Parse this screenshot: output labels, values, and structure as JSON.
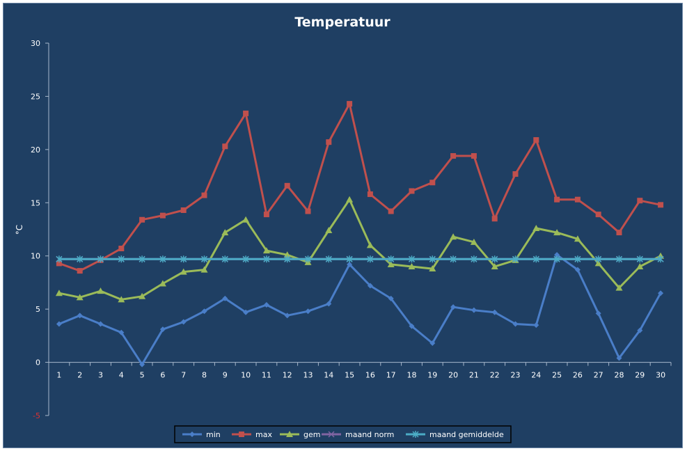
{
  "chart_data": {
    "type": "line",
    "title": "Temperatuur",
    "xlabel": "",
    "ylabel": "°C",
    "ylim": [
      -5,
      30
    ],
    "yticks": [
      "30",
      "25",
      "20",
      "15",
      "10",
      "5",
      "0",
      "-5"
    ],
    "categories": [
      "1",
      "2",
      "3",
      "4",
      "5",
      "6",
      "7",
      "8",
      "9",
      "10",
      "11",
      "12",
      "13",
      "14",
      "15",
      "16",
      "17",
      "18",
      "19",
      "20",
      "21",
      "22",
      "23",
      "24",
      "25",
      "26",
      "27",
      "28",
      "29",
      "30"
    ],
    "grid": false,
    "legend_position": "bottom",
    "series": [
      {
        "name": "min",
        "color": "#4a7ec8",
        "marker": "diamond",
        "values": [
          3.6,
          4.4,
          3.6,
          2.8,
          -0.2,
          3.1,
          3.8,
          4.8,
          6.0,
          4.7,
          5.4,
          4.4,
          4.8,
          5.5,
          9.2,
          7.2,
          6.0,
          3.4,
          1.8,
          5.2,
          4.9,
          4.7,
          3.6,
          3.5,
          10.1,
          8.7,
          4.6,
          0.4,
          3.0,
          6.5
        ]
      },
      {
        "name": "max",
        "color": "#c0504d",
        "marker": "square",
        "values": [
          9.3,
          8.6,
          9.6,
          10.7,
          13.4,
          13.8,
          14.3,
          15.7,
          20.3,
          23.4,
          13.9,
          16.6,
          14.2,
          20.7,
          24.3,
          15.8,
          14.2,
          16.1,
          16.9,
          19.4,
          19.4,
          13.5,
          17.7,
          20.9,
          15.3,
          15.3,
          13.9,
          12.2,
          15.2,
          14.8
        ]
      },
      {
        "name": "gem",
        "color": "#9bbb59",
        "marker": "triangle",
        "values": [
          6.5,
          6.1,
          6.7,
          5.9,
          6.2,
          7.4,
          8.5,
          8.7,
          12.2,
          13.4,
          10.5,
          10.1,
          9.4,
          12.4,
          15.3,
          11.0,
          9.2,
          9.0,
          8.8,
          11.8,
          11.3,
          9.0,
          9.6,
          12.6,
          12.2,
          11.6,
          9.3,
          7.0,
          9.0,
          10.0
        ]
      },
      {
        "name": "maand norm",
        "color": "#8064a2",
        "marker": "x",
        "values": [
          9.7,
          9.7,
          9.7,
          9.7,
          9.7,
          9.7,
          9.7,
          9.7,
          9.7,
          9.7,
          9.7,
          9.7,
          9.7,
          9.7,
          9.7,
          9.7,
          9.7,
          9.7,
          9.7,
          9.7,
          9.7,
          9.7,
          9.7,
          9.7,
          9.7,
          9.7,
          9.7,
          9.7,
          9.7,
          9.7
        ]
      },
      {
        "name": "maand gemiddelde",
        "color": "#4bacc6",
        "marker": "star",
        "values": [
          9.7,
          9.7,
          9.7,
          9.7,
          9.7,
          9.7,
          9.7,
          9.7,
          9.7,
          9.7,
          9.7,
          9.7,
          9.7,
          9.7,
          9.7,
          9.7,
          9.7,
          9.7,
          9.7,
          9.7,
          9.7,
          9.7,
          9.7,
          9.7,
          9.7,
          9.7,
          9.7,
          9.7,
          9.7,
          9.7
        ]
      }
    ]
  }
}
